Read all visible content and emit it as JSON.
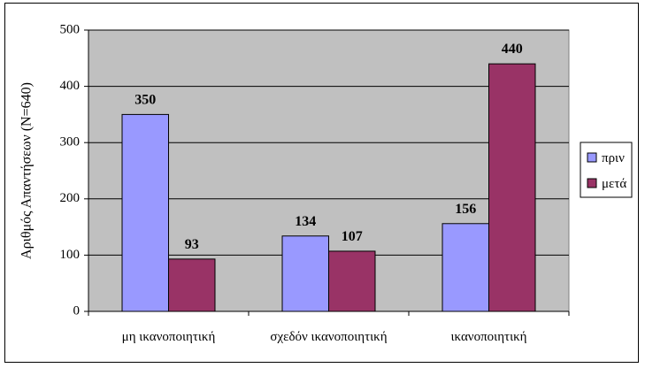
{
  "chart_data": {
    "type": "bar",
    "title": "",
    "xlabel": "",
    "ylabel": "Αριθμός Απαντήσεων (N=640)",
    "ylim": [
      0,
      500
    ],
    "yticks": [
      0,
      100,
      200,
      300,
      400,
      500
    ],
    "grid": true,
    "legend_position": "right",
    "categories": [
      "μη ικανοποιητική",
      "σχεδόν ικανοποιητική",
      "ικανοποιητική"
    ],
    "series": [
      {
        "name": "πριν",
        "color": "#9999ff",
        "values": [
          350,
          134,
          156
        ]
      },
      {
        "name": "μετά",
        "color": "#993366",
        "values": [
          93,
          107,
          440
        ]
      }
    ]
  }
}
